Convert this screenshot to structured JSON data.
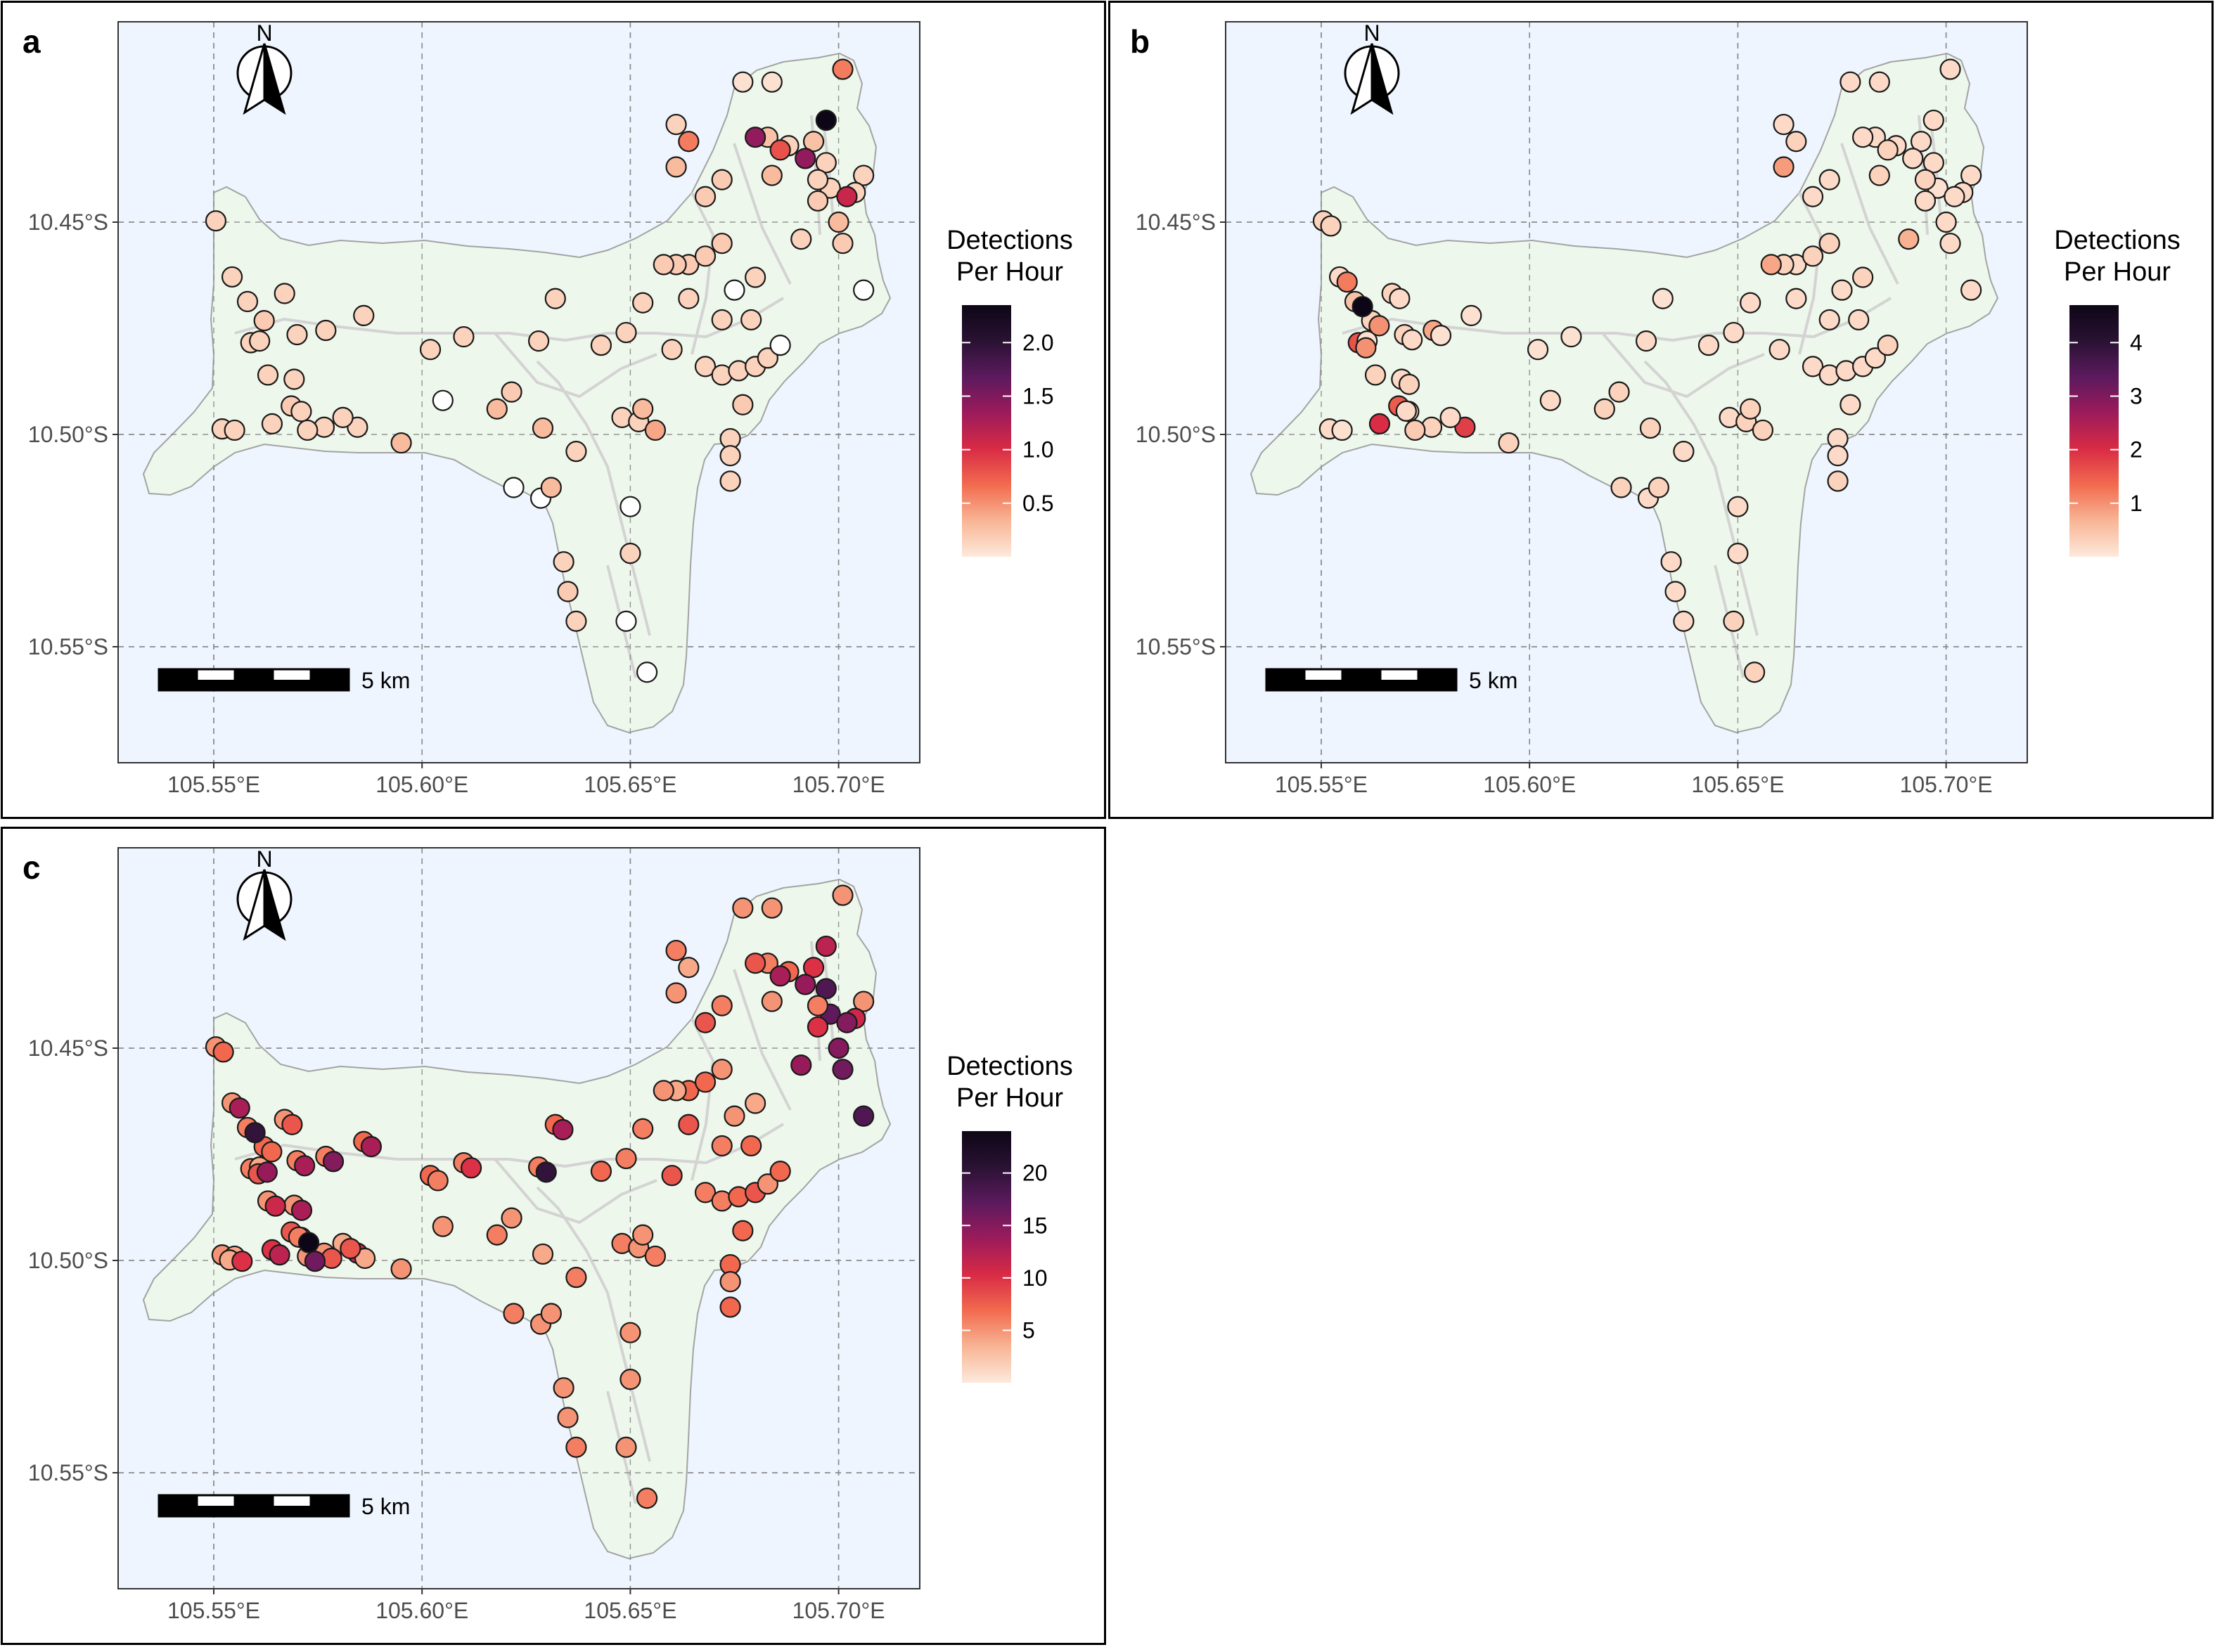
{
  "colors": {
    "ocean": "#eef5fe",
    "land": "#eef7eb",
    "land_outline": "#a3a3a3",
    "roads": "#d3d3d3",
    "grid": "#8a8a8a",
    "ramp": [
      "#fde9dc",
      "#f8b595",
      "#f26b4f",
      "#d92b45",
      "#9c1b5b",
      "#5c1a5e",
      "#2a1233",
      "#0d0616"
    ]
  },
  "axes": {
    "x_ticks": [
      "105.55°E",
      "105.60°E",
      "105.65°E",
      "105.70°E"
    ],
    "y_ticks": [
      "10.45°S",
      "10.50°S",
      "10.55°S"
    ]
  },
  "north_arrow": {
    "label": "N"
  },
  "scale_bar": {
    "label": "5 km"
  },
  "legend": {
    "title_line1": "Detections",
    "title_line2": "Per Hour"
  },
  "chart_data": [
    {
      "type": "scatter",
      "panel_label": "a",
      "title": "",
      "xlabel": "",
      "ylabel": "",
      "xlim": [
        105.527,
        105.718
      ],
      "ylim": [
        -10.576,
        -10.402
      ],
      "colorbar": {
        "min": 0,
        "max": 2.35,
        "ticks": [
          0.5,
          1.0,
          1.5,
          2.0
        ],
        "tick_labels": [
          "0.5",
          "1.0",
          "1.5",
          "2.0"
        ]
      },
      "values": [
        0.15,
        0.15,
        0.15,
        0.15,
        0.2,
        0.15,
        0.15,
        0.15,
        0.15,
        0.2,
        0.15,
        0.15,
        0.15,
        0.15,
        0.15,
        0.15,
        0.15,
        0.15,
        0.15,
        0.15,
        0.15,
        0.15,
        0.15,
        0.15,
        0.15,
        0.2,
        0.3,
        0.3,
        0.15,
        0.0,
        0.3,
        0.0,
        0.0,
        0.3,
        0.15,
        0.15,
        0.0,
        0.15,
        0.0,
        0.0,
        0.15,
        0.2,
        0.15,
        0.3,
        0.4,
        0.15,
        0.15,
        0.15,
        0.15,
        0.15,
        0.15,
        0.15,
        0.15,
        0.15,
        0.15,
        0.15,
        0.15,
        0.15,
        0.2,
        0.15,
        0.0,
        0.15,
        0.0,
        0.2,
        0.2,
        0.2,
        0.2,
        0.2,
        0.15,
        0.2,
        0.2,
        0.15,
        0.6,
        0.3,
        0.05,
        0.05,
        0.25,
        0.3,
        0.15,
        0.25,
        0.6,
        0.15,
        0.15,
        0.2,
        0.0,
        1.4,
        0.8,
        1.4,
        2.35,
        0.15,
        0.15,
        0.3,
        1.1,
        0.15,
        0.2,
        0.15
      ]
    },
    {
      "type": "scatter",
      "panel_label": "b",
      "title": "",
      "xlabel": "",
      "ylabel": "",
      "xlim": [
        105.527,
        105.718
      ],
      "ylim": [
        -10.576,
        -10.402
      ],
      "colorbar": {
        "min": 0,
        "max": 4.7,
        "ticks": [
          1,
          2,
          3,
          4
        ],
        "tick_labels": [
          "1",
          "2",
          "3",
          "4"
        ]
      },
      "values": [
        0.3,
        0.2,
        0.5,
        1.6,
        0.3,
        0.3,
        0.3,
        0.8,
        0.2,
        1.5,
        2.0,
        0.2,
        0.3,
        1.8,
        0.2,
        0.1,
        0.3,
        0.1,
        0.4,
        0.2,
        0.1,
        0.1,
        0.1,
        0.2,
        0.1,
        0.3,
        0.3,
        0.3,
        0.2,
        0.2,
        0.3,
        0.3,
        0.2,
        0.3,
        0.2,
        0.3,
        0.2,
        0.2,
        0.3,
        0.3,
        0.2,
        0.2,
        0.2,
        0.3,
        0.3,
        0.2,
        0.2,
        0.2,
        0.2,
        0.2,
        0.2,
        0.2,
        0.2,
        0.2,
        0.2,
        0.3,
        0.2,
        0.2,
        0.2,
        0.2,
        0.3,
        0.2,
        0.2,
        0.2,
        0.3,
        0.8,
        0.3,
        0.3,
        0.3,
        0.2,
        0.2,
        0.2,
        0.3,
        0.9,
        0.2,
        0.2,
        0.2,
        0.3,
        0.2,
        0.2,
        0.2,
        0.2,
        0.2,
        0.2,
        0.2,
        0.2,
        0.3,
        0.2,
        0.2,
        0.1,
        0.2,
        0.2,
        0.2,
        0.3,
        0.2,
        0.7,
        0.3,
        1.2,
        4.7,
        1.0,
        1.0,
        0.2,
        0.2,
        0.1,
        0.3,
        0.2
      ]
    },
    {
      "type": "scatter",
      "panel_label": "c",
      "title": "",
      "xlabel": "",
      "ylabel": "",
      "xlim": [
        105.527,
        105.718
      ],
      "ylim": [
        -10.576,
        -10.402
      ],
      "colorbar": {
        "min": 0,
        "max": 24,
        "ticks": [
          5,
          10,
          15,
          20
        ],
        "tick_labels": [
          "5",
          "10",
          "15",
          "20"
        ]
      },
      "values": [
        5,
        5,
        6,
        6,
        7,
        5,
        6,
        6,
        5,
        8,
        10,
        5,
        5,
        11,
        5,
        4,
        5,
        4,
        5,
        4,
        7,
        7,
        6,
        6,
        7,
        5,
        6,
        4,
        6,
        5,
        5,
        6,
        5,
        5,
        6,
        5,
        5,
        5,
        5,
        6,
        5,
        5,
        6,
        5,
        6,
        7,
        6,
        6,
        8,
        8,
        6,
        6,
        6,
        7,
        5,
        7,
        7,
        8,
        7,
        5,
        7,
        7,
        5,
        7,
        4,
        5,
        7,
        5,
        4,
        8,
        6,
        6,
        4,
        5,
        5,
        5,
        6,
        5,
        7,
        10,
        5,
        18,
        5,
        16,
        18,
        8,
        13,
        14,
        12,
        17,
        11,
        15,
        15,
        6,
        10,
        14,
        7,
        13,
        20,
        8,
        7,
        8,
        13,
        15,
        13,
        6,
        12,
        24,
        8,
        4,
        4,
        14,
        11,
        10,
        16,
        8,
        13,
        6,
        10,
        20,
        13
      ]
    }
  ]
}
